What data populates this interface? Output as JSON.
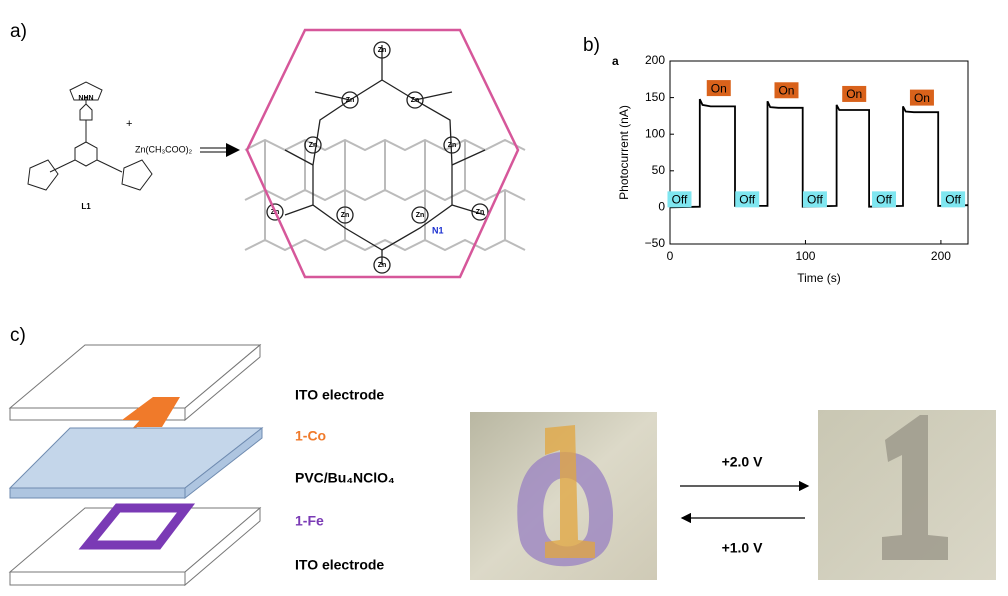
{
  "panels": {
    "a": {
      "label": "a)",
      "ligand": "L1",
      "plus": "+",
      "reagent": "Zn(CH₃COO)₂",
      "metal": "Zn",
      "node": "N1"
    },
    "b": {
      "label": "b)"
    },
    "c": {
      "label": "c)",
      "layers": [
        "ITO electrode",
        "1-Co",
        "PVC/Bu₄NClO₄",
        "1-Fe",
        "ITO electrode"
      ],
      "forward": "+2.0 V",
      "backward": "+1.0 V"
    }
  },
  "chart_data": {
    "type": "line",
    "panel_tag": "a",
    "x_label": "Time (s)",
    "y_label": "Photocurrent (nA)",
    "x": [
      0,
      22,
      22,
      24,
      30,
      48,
      48,
      72,
      72,
      74,
      80,
      98,
      98,
      123,
      123,
      125,
      131,
      147,
      147,
      172,
      172,
      174,
      180,
      198,
      198,
      220
    ],
    "values": [
      0,
      1,
      148,
      140,
      138,
      138,
      2,
      2,
      145,
      137,
      136,
      136,
      1,
      2,
      140,
      133,
      133,
      133,
      1,
      2,
      138,
      131,
      130,
      130,
      2,
      3
    ],
    "color": "#000000",
    "xlim": [
      0,
      220
    ],
    "xticks": [
      0,
      100,
      200
    ],
    "ylim": [
      -50,
      200
    ],
    "yticks": [
      {
        "value": -50,
        "label": "−50"
      },
      0,
      50,
      100,
      150,
      200
    ],
    "on_labels": [
      "On",
      "On",
      "On",
      "On"
    ],
    "on_color": "#d9621b",
    "off_labels": [
      "Off",
      "Off",
      "Off",
      "Off",
      "Off"
    ],
    "off_color": "#7fe6f0"
  }
}
